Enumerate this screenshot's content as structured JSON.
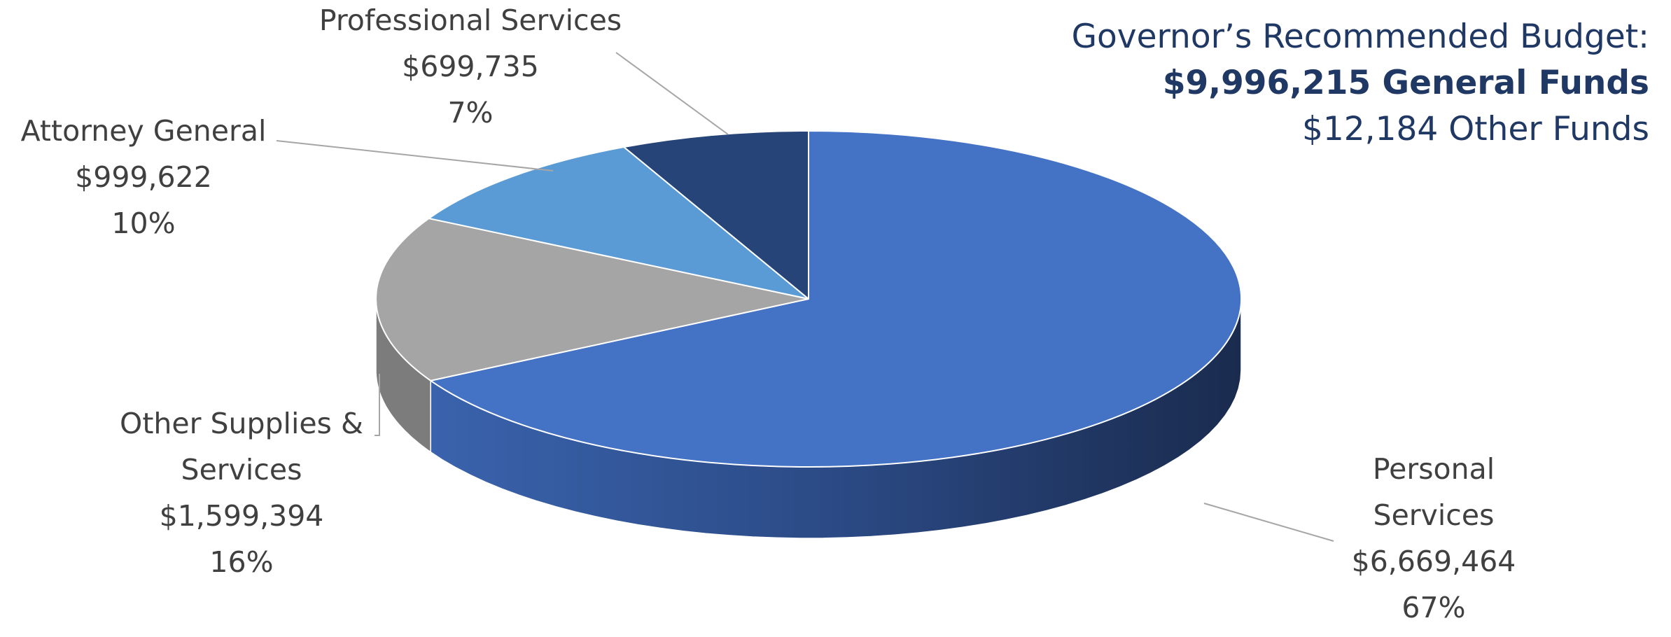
{
  "budget_box": {
    "line1": "Governor’s Recommended Budget:",
    "line2": "$9,996,215 General Funds",
    "line3": "$12,184 Other Funds"
  },
  "chart_data": {
    "type": "pie",
    "three_d": true,
    "title": "",
    "start_angle_deg": 0,
    "direction": "clockwise",
    "slices": [
      {
        "name_lines": [
          "Personal",
          "Services"
        ],
        "label": "Personal Services",
        "value": 6669464,
        "value_label": "$6,669,464",
        "percent_label": "67%",
        "color": "#4472C4",
        "side_color": "#2E4F8C",
        "side_dark": "#1C2E54"
      },
      {
        "name_lines": [
          "Other Supplies &",
          "Services"
        ],
        "label": "Other Supplies & Services",
        "value": 1599394,
        "value_label": "$1,599,394",
        "percent_label": "16%",
        "color": "#A5A5A5",
        "side_color": "#7C7C7C",
        "side_dark": "#5E5E5E"
      },
      {
        "name_lines": [
          "Attorney General"
        ],
        "label": "Attorney General",
        "value": 999622,
        "value_label": "$999,622",
        "percent_label": "10%",
        "color": "#5B9BD5",
        "side_color": "#41729F",
        "side_dark": "#2F5478"
      },
      {
        "name_lines": [
          "Professional Services"
        ],
        "label": "Professional Services",
        "value": 699735,
        "value_label": "$699,735",
        "percent_label": "7%",
        "color": "#264478",
        "side_color": "#1B3157",
        "side_dark": "#13223D"
      }
    ],
    "label_color": "#404040",
    "leader_color": "#A6A6A6",
    "slice_border": "#ffffff"
  }
}
